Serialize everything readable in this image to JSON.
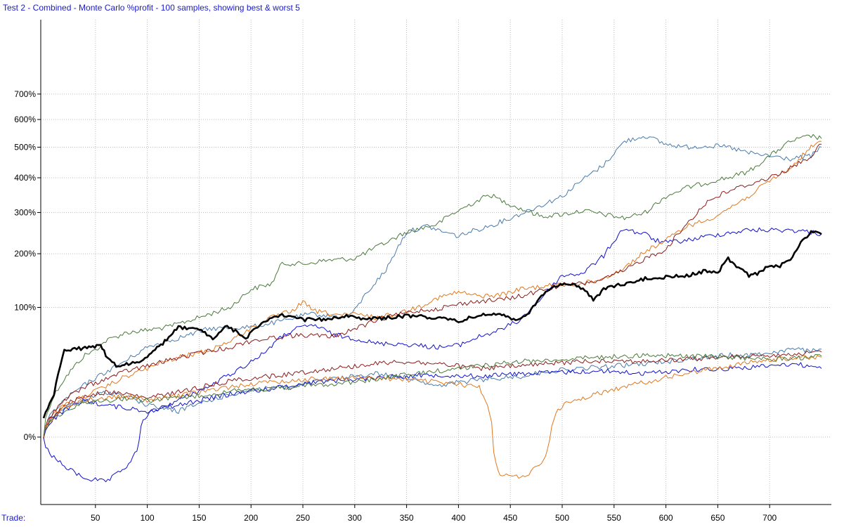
{
  "chart_data": {
    "type": "line",
    "title": "Test 2 - Combined - Monte Carlo %profit - 100 samples, showing best & worst 5",
    "xlabel": "Trade:",
    "ylabel": "",
    "xlim": [
      0,
      760
    ],
    "ylim": [
      -25,
      760
    ],
    "y_scale": "sqrt",
    "grid": true,
    "x_ticks": [
      50,
      100,
      150,
      200,
      250,
      300,
      350,
      400,
      450,
      500,
      550,
      600,
      650,
      700
    ],
    "x_tick_labels": [
      "50",
      "100",
      "150",
      "200",
      "250",
      "300",
      "350",
      "400",
      "450",
      "500",
      "550",
      "600",
      "650",
      "700"
    ],
    "y_ticks": [
      0,
      100,
      200,
      300,
      400,
      500,
      600,
      700
    ],
    "y_tick_labels": [
      "0%",
      "100%",
      "200%",
      "300%",
      "400%",
      "500%",
      "600%",
      "700%"
    ],
    "series": [
      {
        "color": "#000000",
        "width": 3,
        "x": [
          0,
          10,
          20,
          40,
          55,
          60,
          70,
          90,
          100,
          115,
          130,
          150,
          165,
          175,
          185,
          195,
          210,
          230,
          250,
          270,
          290,
          300,
          320,
          340,
          360,
          380,
          400,
          420,
          440,
          455,
          470,
          480,
          490,
          500,
          510,
          520,
          530,
          540,
          550,
          560,
          570,
          580,
          600,
          620,
          640,
          650,
          660,
          670,
          680,
          690,
          700,
          710,
          720,
          730,
          740,
          750
        ],
        "y": [
          2,
          10,
          45,
          47,
          50,
          40,
          30,
          33,
          38,
          52,
          72,
          68,
          57,
          73,
          67,
          58,
          78,
          88,
          82,
          82,
          88,
          85,
          83,
          86,
          88,
          84,
          80,
          88,
          91,
          80,
          95,
          118,
          135,
          140,
          138,
          130,
          112,
          130,
          135,
          140,
          142,
          150,
          152,
          155,
          165,
          160,
          190,
          170,
          155,
          160,
          175,
          175,
          185,
          225,
          250,
          245
        ]
      },
      {
        "color": "#4a7a3a",
        "width": 1,
        "x": [
          0,
          20,
          40,
          50,
          60,
          70,
          80,
          100,
          120,
          150,
          180,
          200,
          220,
          230,
          250,
          270,
          300,
          330,
          350,
          380,
          390,
          410,
          420,
          430,
          440,
          460,
          480,
          500,
          520,
          540,
          560,
          580,
          600,
          620,
          640,
          650,
          660,
          680,
          700,
          720,
          740,
          750
        ],
        "y": [
          0,
          20,
          40,
          45,
          55,
          60,
          65,
          68,
          72,
          85,
          100,
          130,
          140,
          180,
          178,
          185,
          190,
          225,
          250,
          270,
          290,
          320,
          335,
          350,
          335,
          310,
          290,
          295,
          305,
          295,
          285,
          300,
          345,
          370,
          385,
          395,
          400,
          420,
          470,
          520,
          540,
          530
        ]
      },
      {
        "color": "#4a7aaa",
        "width": 1,
        "x": [
          0,
          30,
          60,
          80,
          100,
          120,
          140,
          160,
          200,
          230,
          250,
          260,
          290,
          300,
          310,
          330,
          350,
          370,
          380,
          400,
          410,
          430,
          450,
          480,
          500,
          520,
          540,
          560,
          580,
          600,
          620,
          640,
          660,
          680,
          700,
          720,
          740,
          750
        ],
        "y": [
          0,
          12,
          25,
          35,
          48,
          55,
          62,
          70,
          72,
          80,
          88,
          90,
          85,
          95,
          120,
          165,
          250,
          265,
          255,
          240,
          250,
          265,
          285,
          320,
          345,
          395,
          440,
          520,
          540,
          510,
          500,
          505,
          500,
          480,
          470,
          460,
          470,
          500
        ]
      },
      {
        "color": "#1010cc",
        "width": 1,
        "x": [
          0,
          20,
          40,
          60,
          80,
          100,
          130,
          160,
          190,
          210,
          230,
          240,
          260,
          280,
          300,
          320,
          340,
          360,
          380,
          400,
          410,
          420,
          440,
          460,
          480,
          500,
          520,
          540,
          550,
          560,
          570,
          580,
          590,
          600,
          620,
          640,
          660,
          680,
          700,
          720,
          740,
          750
        ],
        "y": [
          0,
          -5,
          -10,
          -12,
          -5,
          3,
          8,
          15,
          28,
          40,
          60,
          68,
          75,
          62,
          58,
          52,
          52,
          50,
          48,
          50,
          55,
          60,
          68,
          82,
          115,
          155,
          160,
          195,
          230,
          260,
          250,
          245,
          230,
          225,
          230,
          240,
          248,
          255,
          255,
          255,
          250,
          245
        ]
      },
      {
        "color": "#e07820",
        "width": 1,
        "x": [
          0,
          20,
          40,
          60,
          80,
          100,
          120,
          140,
          160,
          180,
          200,
          220,
          240,
          250,
          260,
          270,
          290,
          300,
          320,
          340,
          360,
          380,
          400,
          420,
          440,
          460,
          480,
          500,
          520,
          540,
          560,
          580,
          600,
          620,
          640,
          660,
          680,
          700,
          720,
          740,
          750
        ],
        "y": [
          0,
          6,
          10,
          15,
          22,
          28,
          35,
          40,
          45,
          55,
          70,
          85,
          95,
          108,
          95,
          92,
          88,
          90,
          85,
          90,
          100,
          115,
          125,
          118,
          120,
          130,
          135,
          138,
          140,
          150,
          170,
          205,
          230,
          265,
          280,
          310,
          345,
          390,
          430,
          500,
          520
        ]
      },
      {
        "color": "#8b1a1a",
        "width": 1,
        "x": [
          0,
          20,
          40,
          60,
          80,
          100,
          120,
          150,
          180,
          200,
          230,
          250,
          280,
          300,
          330,
          360,
          380,
          400,
          420,
          440,
          460,
          480,
          500,
          520,
          540,
          560,
          580,
          600,
          620,
          640,
          660,
          680,
          700,
          720,
          740,
          750
        ],
        "y": [
          0,
          8,
          15,
          20,
          26,
          30,
          35,
          42,
          48,
          55,
          60,
          62,
          60,
          70,
          85,
          95,
          98,
          105,
          110,
          112,
          118,
          128,
          138,
          140,
          148,
          165,
          190,
          210,
          270,
          330,
          360,
          380,
          400,
          430,
          470,
          510
        ]
      },
      {
        "color": "#4a7aaa",
        "width": 1,
        "x": [
          0,
          20,
          40,
          60,
          80,
          100,
          130,
          160,
          190,
          220,
          240,
          260,
          280,
          300,
          320,
          340,
          360,
          380,
          400,
          430,
          460,
          490,
          520,
          550,
          580,
          600,
          620,
          640,
          660,
          680,
          700,
          720,
          740,
          750
        ],
        "y": [
          0,
          5,
          8,
          12,
          10,
          6,
          4,
          8,
          12,
          15,
          14,
          18,
          20,
          22,
          24,
          22,
          20,
          15,
          18,
          20,
          22,
          26,
          28,
          30,
          32,
          34,
          36,
          38,
          40,
          40,
          42,
          46,
          44,
          46
        ]
      },
      {
        "color": "#1010cc",
        "width": 1,
        "x": [
          0,
          20,
          40,
          60,
          80,
          100,
          130,
          160,
          190,
          220,
          260,
          300,
          340,
          380,
          420,
          460,
          500,
          540,
          580,
          620,
          660,
          680,
          700,
          720,
          740,
          750
        ],
        "y": [
          0,
          4,
          8,
          6,
          5,
          4,
          6,
          9,
          12,
          14,
          18,
          20,
          22,
          23,
          22,
          24,
          25,
          26,
          24,
          27,
          28,
          29,
          30,
          32,
          30,
          28
        ]
      },
      {
        "color": "#8b1a1a",
        "width": 1,
        "x": [
          0,
          20,
          40,
          60,
          80,
          100,
          130,
          160,
          190,
          220,
          260,
          300,
          340,
          380,
          420,
          460,
          500,
          540,
          580,
          620,
          660,
          680,
          700,
          720,
          740,
          750
        ],
        "y": [
          0,
          6,
          10,
          12,
          11,
          9,
          12,
          16,
          20,
          22,
          26,
          30,
          34,
          32,
          28,
          30,
          33,
          35,
          34,
          36,
          38,
          39,
          40,
          41,
          42,
          43
        ]
      },
      {
        "color": "#e07820",
        "width": 1,
        "x": [
          0,
          20,
          40,
          60,
          80,
          100,
          130,
          160,
          190,
          220,
          260,
          300,
          340,
          380,
          420,
          440,
          460,
          480,
          500,
          540,
          580,
          620,
          660,
          680,
          700,
          720,
          740,
          750
        ],
        "y": [
          0,
          5,
          8,
          9,
          10,
          8,
          10,
          13,
          16,
          18,
          20,
          21,
          20,
          18,
          15,
          -8,
          -10,
          -4,
          6,
          12,
          18,
          24,
          30,
          33,
          35,
          37,
          38,
          38
        ]
      },
      {
        "color": "#4a7a3a",
        "width": 1,
        "x": [
          0,
          20,
          40,
          60,
          80,
          100,
          130,
          160,
          190,
          220,
          260,
          300,
          340,
          380,
          420,
          460,
          500,
          540,
          580,
          620,
          660,
          680,
          700,
          720,
          740,
          750
        ],
        "y": [
          0,
          4,
          7,
          8,
          9,
          8,
          9,
          11,
          13,
          14,
          16,
          18,
          22,
          26,
          30,
          34,
          36,
          38,
          40,
          39,
          38,
          37,
          36,
          37,
          38,
          39
        ]
      }
    ]
  }
}
